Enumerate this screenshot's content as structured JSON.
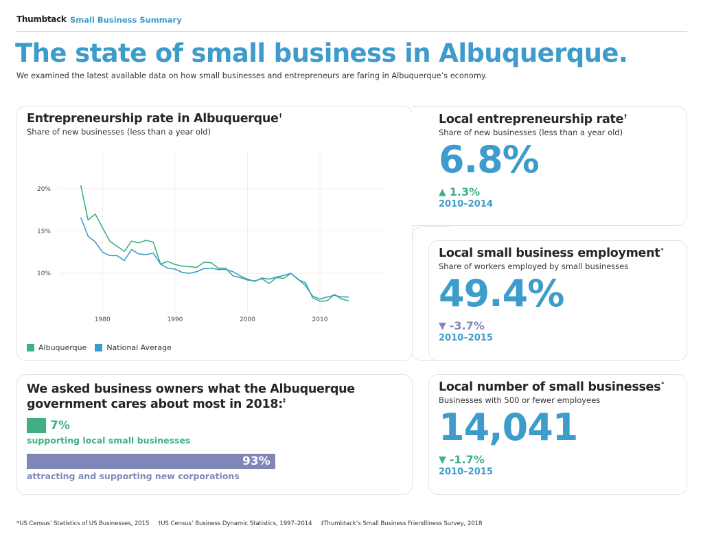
{
  "header": {
    "brand": "Thumbtack",
    "section": "Small Business Summary"
  },
  "page": {
    "title": "The state of small business in Albuquerque.",
    "subtitle": "We examined the latest available data on how small businesses and entrepreneurs are faring in Albuquerque’s economy."
  },
  "colors": {
    "albuquerque": "#3fb082",
    "national": "#3d9ccb",
    "decline_purple": "#8087b8",
    "title_blue": "#3d9ccb"
  },
  "chart_card": {
    "title": "Entrepreneurship rate in Albuquerque",
    "title_mark": "†",
    "subtitle": "Share of new businesses (less than a year old)"
  },
  "chart_data": {
    "type": "line",
    "title": "Entrepreneurship rate in Albuquerque",
    "subtitle": "Share of new businesses (less than a year old)",
    "xlabel": "",
    "ylabel": "",
    "x": [
      1977,
      1978,
      1979,
      1980,
      1981,
      1982,
      1983,
      1984,
      1985,
      1986,
      1987,
      1988,
      1989,
      1990,
      1991,
      1992,
      1993,
      1994,
      1995,
      1996,
      1997,
      1998,
      1999,
      2000,
      2001,
      2002,
      2003,
      2004,
      2005,
      2006,
      2007,
      2008,
      2009,
      2010,
      2011,
      2012,
      2013,
      2014
    ],
    "xlim": [
      1974,
      2019
    ],
    "ylim": [
      5.3,
      24.3
    ],
    "x_ticks": [
      1980,
      1990,
      2000,
      2010,
      2020
    ],
    "x_tick_labels": [
      "1980",
      "1990",
      "2000",
      "2010"
    ],
    "y_ticks": [
      10,
      15,
      20
    ],
    "y_tick_labels": [
      "10%",
      "15%",
      "20%"
    ],
    "grid": true,
    "legend_position": "bottom-left",
    "series": [
      {
        "name": "Albuquerque",
        "color": "#3fb082",
        "values": [
          20.4,
          16.3,
          17.0,
          15.4,
          13.8,
          13.2,
          12.6,
          13.8,
          13.6,
          13.9,
          13.7,
          11.1,
          11.4,
          11.05,
          10.85,
          10.8,
          10.7,
          11.3,
          11.25,
          10.6,
          10.6,
          9.7,
          9.5,
          9.2,
          9.1,
          9.35,
          8.8,
          9.5,
          9.4,
          10.0,
          9.25,
          8.9,
          7.1,
          6.7,
          6.75,
          7.5,
          6.95,
          6.75
        ]
      },
      {
        "name": "National Average",
        "color": "#3d9ccb",
        "values": [
          16.6,
          14.4,
          13.7,
          12.5,
          12.1,
          12.1,
          11.5,
          12.8,
          12.3,
          12.2,
          12.4,
          11.1,
          10.6,
          10.5,
          10.1,
          10.0,
          10.2,
          10.55,
          10.6,
          10.45,
          10.45,
          10.2,
          9.7,
          9.3,
          9.05,
          9.45,
          9.3,
          9.55,
          9.75,
          10.0,
          9.3,
          8.55,
          7.3,
          6.95,
          7.2,
          7.4,
          7.2,
          7.2
        ]
      }
    ]
  },
  "legend": [
    {
      "label": "Albuquerque",
      "color": "#3fb082"
    },
    {
      "label": "National Average",
      "color": "#3d9ccb"
    }
  ],
  "stats": [
    {
      "title": "Local entrepreneurship rate",
      "mark": "†",
      "subtitle": "Share of new businesses (less than a year old)",
      "value": "6.8%",
      "delta_icon": "▲",
      "delta": "1.3%",
      "delta_color": "#3fb082",
      "range": "2010–2014"
    },
    {
      "title": "Local small business employment",
      "mark": "*",
      "subtitle": "Share of workers employed by small businesses",
      "value": "49.4%",
      "delta_icon": "▼",
      "delta": "-3.7%",
      "delta_color": "#8087b8",
      "range": "2010–2015"
    },
    {
      "title": "Local number of small businesses",
      "mark": "*",
      "subtitle": "Businesses with 500 or fewer employees",
      "value": "14,041",
      "delta_icon": "▼",
      "delta": "-1.7%",
      "delta_color": "#3fb082",
      "range": "2010–2015"
    }
  ],
  "survey": {
    "title_line1": "We asked business owners what the Albuquerque",
    "title_line2": "government cares about most in 2018:",
    "mark": "‡",
    "items": [
      {
        "percent": 7,
        "value_label": "7%",
        "label": "supporting local small businesses",
        "color": "#3fb082"
      },
      {
        "percent": 93,
        "value_label": "93%",
        "label": "attracting and supporting new corporations",
        "color": "#8087b8"
      }
    ]
  },
  "footnotes": [
    "*US Census’ Statistics of US Businesses, 2015",
    "†US Census’ Business Dynamic Statistics, 1997–2014",
    "‡Thumbtack’s Small Business Friendliness Survey, 2018"
  ]
}
